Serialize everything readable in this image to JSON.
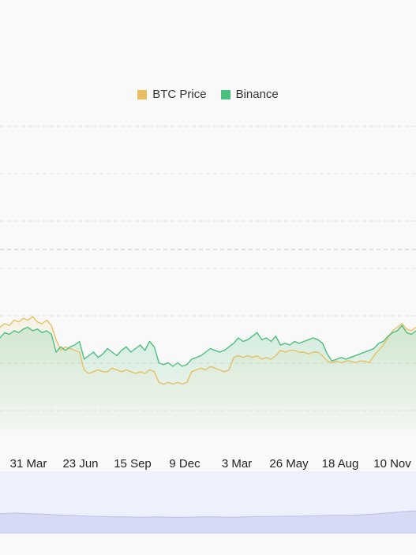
{
  "legend": [
    {
      "label": "BTC Price",
      "color": "#e6c060"
    },
    {
      "label": "Binance",
      "color": "#4cbf7e"
    }
  ],
  "chart_data": {
    "type": "line",
    "title": "",
    "xlabel": "",
    "ylabel": "",
    "x_ticks": [
      "31 Mar",
      "23 Jun",
      "15 Sep",
      "9 Dec",
      "3 Mar",
      "26 May",
      "18 Aug",
      "10 Nov"
    ],
    "grid": true,
    "legend_position": "top-center",
    "ylim": [
      0,
      1
    ],
    "series": [
      {
        "name": "BTC Price",
        "color": "#e6c060",
        "values": [
          0.58,
          0.6,
          0.59,
          0.62,
          0.61,
          0.63,
          0.62,
          0.64,
          0.61,
          0.6,
          0.62,
          0.59,
          0.51,
          0.45,
          0.47,
          0.46,
          0.45,
          0.44,
          0.34,
          0.32,
          0.33,
          0.34,
          0.33,
          0.33,
          0.35,
          0.34,
          0.33,
          0.34,
          0.33,
          0.32,
          0.33,
          0.32,
          0.34,
          0.33,
          0.27,
          0.26,
          0.27,
          0.26,
          0.27,
          0.26,
          0.27,
          0.33,
          0.34,
          0.35,
          0.34,
          0.36,
          0.35,
          0.34,
          0.33,
          0.34,
          0.41,
          0.42,
          0.41,
          0.42,
          0.41,
          0.42,
          0.4,
          0.41,
          0.4,
          0.42,
          0.45,
          0.44,
          0.45,
          0.45,
          0.44,
          0.44,
          0.43,
          0.44,
          0.44,
          0.42,
          0.39,
          0.38,
          0.39,
          0.38,
          0.39,
          0.39,
          0.38,
          0.39,
          0.39,
          0.38,
          0.42,
          0.45,
          0.48,
          0.52,
          0.56,
          0.58,
          0.6,
          0.57,
          0.56,
          0.58
        ]
      },
      {
        "name": "Binance",
        "color": "#4cbf7e",
        "values": [
          0.52,
          0.55,
          0.54,
          0.56,
          0.55,
          0.57,
          0.58,
          0.56,
          0.57,
          0.55,
          0.56,
          0.54,
          0.44,
          0.47,
          0.45,
          0.47,
          0.48,
          0.5,
          0.4,
          0.42,
          0.44,
          0.41,
          0.43,
          0.46,
          0.44,
          0.42,
          0.45,
          0.47,
          0.44,
          0.46,
          0.48,
          0.45,
          0.5,
          0.47,
          0.38,
          0.37,
          0.38,
          0.36,
          0.38,
          0.36,
          0.37,
          0.4,
          0.41,
          0.42,
          0.44,
          0.46,
          0.45,
          0.44,
          0.45,
          0.47,
          0.49,
          0.52,
          0.5,
          0.51,
          0.53,
          0.55,
          0.51,
          0.52,
          0.5,
          0.53,
          0.48,
          0.49,
          0.48,
          0.5,
          0.49,
          0.5,
          0.51,
          0.52,
          0.51,
          0.49,
          0.43,
          0.39,
          0.4,
          0.41,
          0.4,
          0.41,
          0.42,
          0.43,
          0.44,
          0.45,
          0.46,
          0.49,
          0.5,
          0.53,
          0.55,
          0.56,
          0.59,
          0.55,
          0.54,
          0.56
        ]
      }
    ],
    "navigator": {
      "values": [
        0.5,
        0.52,
        0.5,
        0.49,
        0.47,
        0.46,
        0.44,
        0.43,
        0.42,
        0.42,
        0.41,
        0.42,
        0.41,
        0.41,
        0.42,
        0.42,
        0.41,
        0.42,
        0.43,
        0.43,
        0.44,
        0.44,
        0.45,
        0.46,
        0.46,
        0.47,
        0.49,
        0.52,
        0.55,
        0.57
      ]
    }
  }
}
